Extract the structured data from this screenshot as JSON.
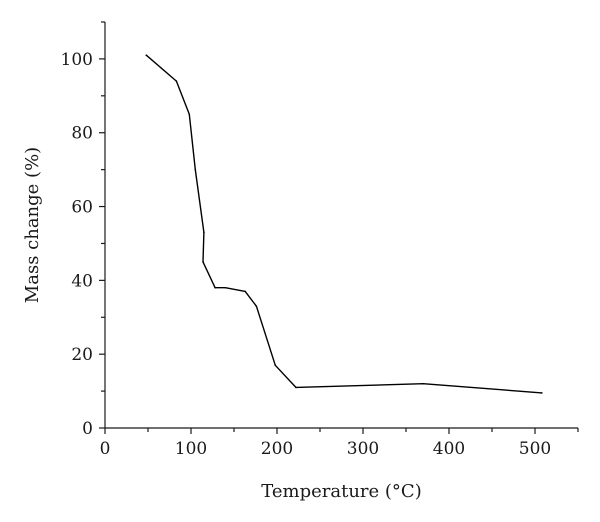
{
  "chart_data": {
    "type": "line",
    "xlabel": "Temperature (°C)",
    "ylabel": "Mass change (%)",
    "xlim": [
      0,
      550
    ],
    "ylim": [
      0,
      110
    ],
    "x_ticks": [
      0,
      100,
      200,
      300,
      400,
      500
    ],
    "y_ticks": [
      0,
      20,
      40,
      60,
      80,
      100
    ],
    "x_minor_step": 50,
    "y_minor_step": 10,
    "grid": false,
    "series": [
      {
        "x": [
          48,
          83,
          98,
          105,
          115,
          114,
          128,
          140,
          163,
          176,
          198,
          222,
          370,
          508
        ],
        "y": [
          101,
          94,
          85,
          70,
          53,
          45,
          38,
          38,
          37,
          33,
          17,
          11,
          12,
          9.5
        ],
        "color": "#000000"
      }
    ]
  }
}
